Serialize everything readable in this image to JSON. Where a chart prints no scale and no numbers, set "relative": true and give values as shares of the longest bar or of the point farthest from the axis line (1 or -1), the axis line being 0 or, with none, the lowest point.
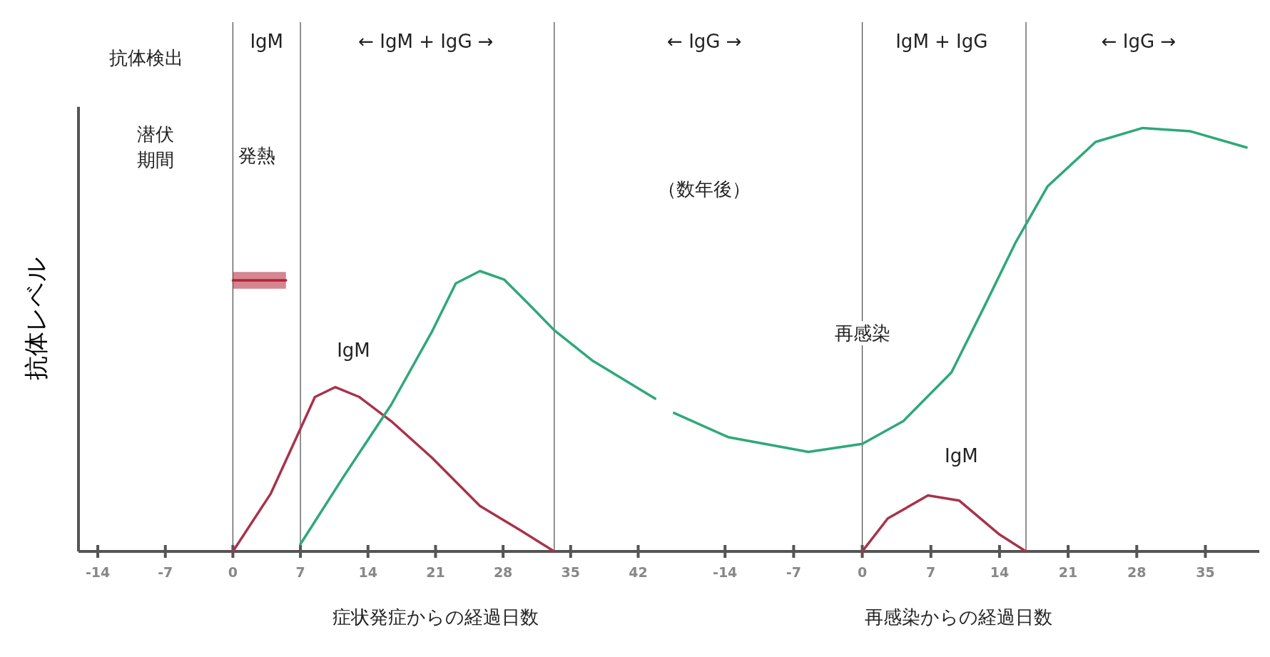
{
  "chart_data": [
    {
      "type": "line",
      "ylabel": "抗体レベル",
      "relative": true,
      "xlim": [
        -16,
        44.7
      ],
      "xticks": [
        -14,
        -7,
        0,
        7,
        14,
        21,
        28,
        35,
        42
      ],
      "series": [
        {
          "color": "#a8324a",
          "x": [
            0,
            3.9,
            7,
            8.5,
            10.6,
            13.1,
            16.4,
            20.6,
            25.6,
            29.75,
            33.3
          ],
          "values": [
            0,
            0.205,
            0.438,
            0.551,
            0.586,
            0.551,
            0.465,
            0.335,
            0.162,
            0.076,
            0
          ]
        },
        {
          "color": "#2ea87a",
          "x": [
            7,
            11.4,
            16.4,
            20.6,
            23.1,
            25.6,
            28.1,
            30.6,
            33.3,
            37.25,
            43.75
          ],
          "values": [
            0.026,
            0.263,
            0.523,
            0.782,
            0.956,
            1.0,
            0.97,
            0.884,
            0.789,
            0.681,
            0.545
          ]
        },
        {
          "color": "#b22234",
          "x": [
            0,
            5.5
          ],
          "values": [
            0.967,
            0.967
          ],
          "lower": [
            0.937,
            0.937
          ],
          "upper": [
            0.997,
            0.997
          ]
        }
      ],
      "ref_lines": [
        {
          "axis": "x",
          "value": 0,
          "color": "#555555"
        },
        {
          "axis": "x",
          "value": 7,
          "color": "#555555"
        },
        {
          "axis": "x",
          "value": 33.3,
          "color": "#555555"
        }
      ],
      "annotations": [
        "抗体検出",
        "IgM",
        "← IgM + IgG →",
        "潜伏",
        "期間",
        "発熱",
        "IgM",
        "症状発症からの経過日数"
      ]
    },
    {
      "type": "line",
      "relative": true,
      "xlim": [
        -20.2,
        40.5
      ],
      "xticks": [
        -14,
        -7,
        0,
        7,
        14,
        21,
        28,
        35
      ],
      "series": [
        {
          "color": "#2ea87a",
          "x": [
            -19.2,
            -13.7,
            -5.5,
            0,
            4.2,
            9.1,
            12.4,
            15.6,
            18.9,
            23.8,
            28.6,
            33.5,
            39.2
          ],
          "values": [
            0.327,
            0.27,
            0.235,
            0.254,
            0.308,
            0.423,
            0.576,
            0.728,
            0.862,
            0.967,
            1.0,
            0.992,
            0.954
          ]
        },
        {
          "color": "#a8324a",
          "x": [
            0,
            2.6,
            6.7,
            9.9,
            14,
            16.7
          ],
          "values": [
            0,
            0.078,
            0.132,
            0.12,
            0.04,
            0
          ]
        }
      ],
      "ref_lines": [
        {
          "axis": "x",
          "value": 0,
          "color": "#555555"
        },
        {
          "axis": "x",
          "value": 16.7,
          "color": "#555555"
        }
      ],
      "annotations": [
        "← IgG →",
        "IgM + IgG",
        "← IgG →",
        "（数年後）",
        "再感染",
        "IgM",
        "再感染からの経過日数"
      ]
    }
  ]
}
